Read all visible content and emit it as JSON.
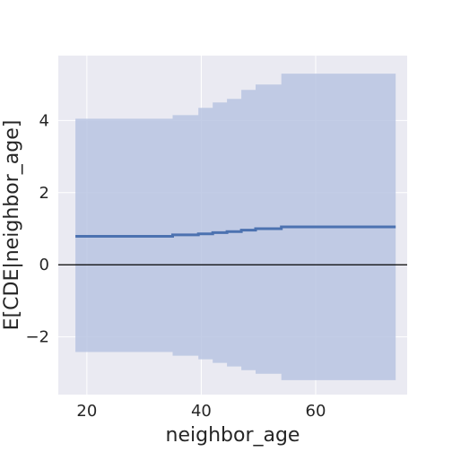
{
  "chart_data": {
    "type": "line",
    "xlabel": "neighbor_age",
    "ylabel": "E[CDE|neighbor_age]",
    "xlim": [
      15,
      76
    ],
    "ylim": [
      -3.6,
      5.8
    ],
    "xticks": [
      20,
      40,
      60
    ],
    "yticks": [
      -2,
      0,
      2,
      4
    ],
    "grid": true,
    "reference_line_y": 0,
    "colors": {
      "background": "#eaeaf2",
      "grid": "#ffffff",
      "line": "#4c72b0",
      "band": "#b8c4e2",
      "reference": "#000000"
    },
    "series": [
      {
        "x": [
          18,
          35,
          39.5,
          42,
          44.5,
          47,
          49.5,
          54,
          74
        ],
        "y": [
          0.79,
          0.83,
          0.86,
          0.89,
          0.92,
          0.96,
          1.0,
          1.05,
          1.05
        ],
        "lower": [
          -2.42,
          -2.52,
          -2.62,
          -2.72,
          -2.82,
          -2.92,
          -3.02,
          -3.2,
          -3.2
        ],
        "upper": [
          4.05,
          4.15,
          4.35,
          4.5,
          4.6,
          4.85,
          5.0,
          5.3,
          5.3
        ]
      }
    ]
  }
}
